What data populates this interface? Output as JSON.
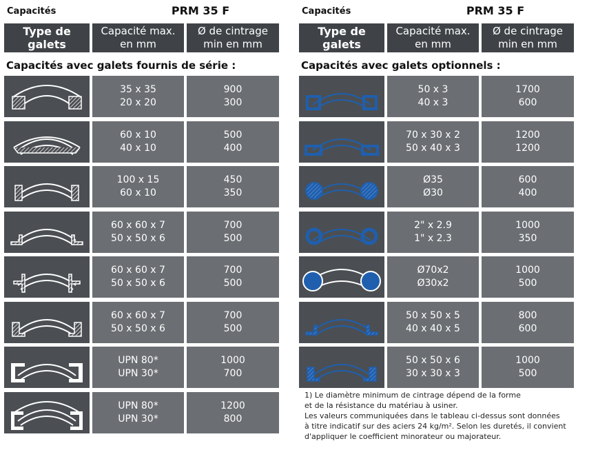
{
  "left": {
    "label": "Capacités",
    "model": "PRM 35 F",
    "headers": {
      "type": [
        "Type de",
        "galets"
      ],
      "capacity": [
        "Capacité max.",
        "en mm"
      ],
      "diameter": [
        "Ø de cintrage",
        "min en mm"
      ]
    },
    "subtitle": "Capacités avec galets fournis de série :",
    "rows": [
      {
        "icon": "square-tube-profile-icon",
        "cap": [
          "35 x 35",
          "20 x 20"
        ],
        "dia": [
          "900",
          "300"
        ]
      },
      {
        "icon": "flat-bar-flat-profile-icon",
        "cap": [
          "60 x 10",
          "40 x 10"
        ],
        "dia": [
          "500",
          "400"
        ]
      },
      {
        "icon": "flat-bar-edge-profile-icon",
        "cap": [
          "100 x 15",
          "60 x 10"
        ],
        "dia": [
          "450",
          "350"
        ]
      },
      {
        "icon": "angle-leg-out-profile-icon",
        "cap": [
          "60 x 60 x 7",
          "50 x 50 x 6"
        ],
        "dia": [
          "700",
          "500"
        ]
      },
      {
        "icon": "tee-profile-icon",
        "cap": [
          "60 x 60 x 7",
          "50 x 50 x 6"
        ],
        "dia": [
          "700",
          "500"
        ]
      },
      {
        "icon": "angle-leg-in-profile-icon",
        "cap": [
          "60 x 60 x 7",
          "50 x 50 x 6"
        ],
        "dia": [
          "700",
          "500"
        ]
      },
      {
        "icon": "channel-flanges-out-profile-icon",
        "cap": [
          "UPN 80*",
          "UPN 30*"
        ],
        "dia": [
          "1000",
          "700"
        ]
      },
      {
        "icon": "channel-flanges-in-profile-icon",
        "cap": [
          "UPN 80*",
          "UPN 30*"
        ],
        "dia": [
          "1200",
          "800"
        ]
      }
    ]
  },
  "right": {
    "label": "Capacités",
    "model": "PRM 35 F",
    "headers": {
      "type": [
        "Type de",
        "galets"
      ],
      "capacity": [
        "Capacité max.",
        "en mm"
      ],
      "diameter": [
        "Ø de cintrage",
        "min en mm"
      ]
    },
    "subtitle": "Capacités avec galets optionnels :",
    "rows": [
      {
        "icon": "square-hollow-tube-profile-icon",
        "cap": [
          "50 x 3",
          "40 x 3"
        ],
        "dia": [
          "1700",
          "600"
        ]
      },
      {
        "icon": "rectangular-tube-profile-icon",
        "cap": [
          "70 x 30 x 2",
          "50 x 40 x 3"
        ],
        "dia": [
          "1200",
          "1200"
        ]
      },
      {
        "icon": "round-bar-profile-icon",
        "cap": [
          "Ø35",
          "Ø30"
        ],
        "dia": [
          "600",
          "400"
        ]
      },
      {
        "icon": "round-tube-inch-profile-icon",
        "cap": [
          "2\" x 2.9",
          "1\" x 2.3"
        ],
        "dia": [
          "1000",
          "350"
        ]
      },
      {
        "icon": "round-tube-profile-icon",
        "cap": [
          "Ø70x2",
          "Ø30x2"
        ],
        "dia": [
          "1000",
          "500"
        ]
      },
      {
        "icon": "angle-leg-out-profile-icon",
        "cap": [
          "50 x 50 x 5",
          "40 x 40 x 5"
        ],
        "dia": [
          "800",
          "600"
        ]
      },
      {
        "icon": "angle-leg-in-profile-icon",
        "cap": [
          "50 x 50 x 6",
          "30 x 30 x 3"
        ],
        "dia": [
          "1000",
          "500"
        ]
      }
    ]
  },
  "note": [
    "1) Le diamètre minimum de cintrage dépend de la forme",
    "et de la résistance du matériau à usiner.",
    "Les valeurs communiquées dans le tableau ci-dessus sont données",
    "à titre indicatif sur des aciers 24 kg/m². Selon les duretés, il convient",
    "d'appliquer le coefficient minorateur ou majorateur."
  ],
  "colors": {
    "header": "#3f4347",
    "icon_cell": "#4b4f53",
    "value_cell": "#6b6e72",
    "standard_profile": "#ffffff",
    "optional_profile": "#1f5fae"
  }
}
